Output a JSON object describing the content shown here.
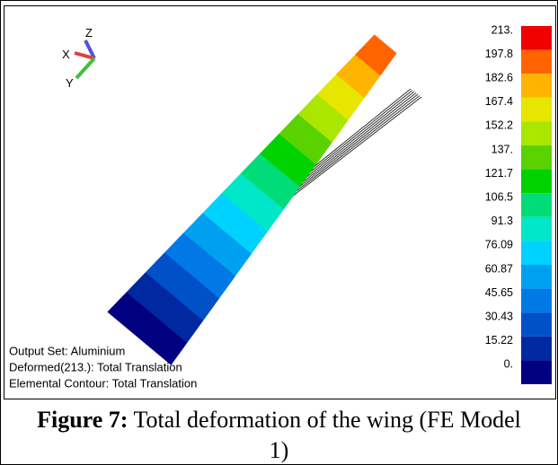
{
  "figure": {
    "triad": [
      "X",
      "Y",
      "Z"
    ],
    "legend": [
      {
        "label": "213.",
        "color": "#f00000"
      },
      {
        "label": "197.8",
        "color": "#ff6400"
      },
      {
        "label": "182.6",
        "color": "#ffb400"
      },
      {
        "label": "167.4",
        "color": "#e6e600"
      },
      {
        "label": "152.2",
        "color": "#aae600"
      },
      {
        "label": "137.",
        "color": "#5ad200"
      },
      {
        "label": "121.7",
        "color": "#00d200"
      },
      {
        "label": "106.5",
        "color": "#00dc78"
      },
      {
        "label": "91.3",
        "color": "#00e6c8"
      },
      {
        "label": "76.09",
        "color": "#00d2ff"
      },
      {
        "label": "60.87",
        "color": "#00a0f0"
      },
      {
        "label": "45.65",
        "color": "#0078e6"
      },
      {
        "label": "30.43",
        "color": "#0050c8"
      },
      {
        "label": "15.22",
        "color": "#0028a0"
      },
      {
        "label": "0.",
        "color": "#000080"
      }
    ],
    "info": [
      "Output Set: Aluminium",
      "Deformed(213.): Total Translation",
      "Elemental Contour: Total Translation"
    ]
  },
  "caption": {
    "label": "Figure 7:",
    "text": "Total deformation of the wing (FE Model 1)"
  }
}
